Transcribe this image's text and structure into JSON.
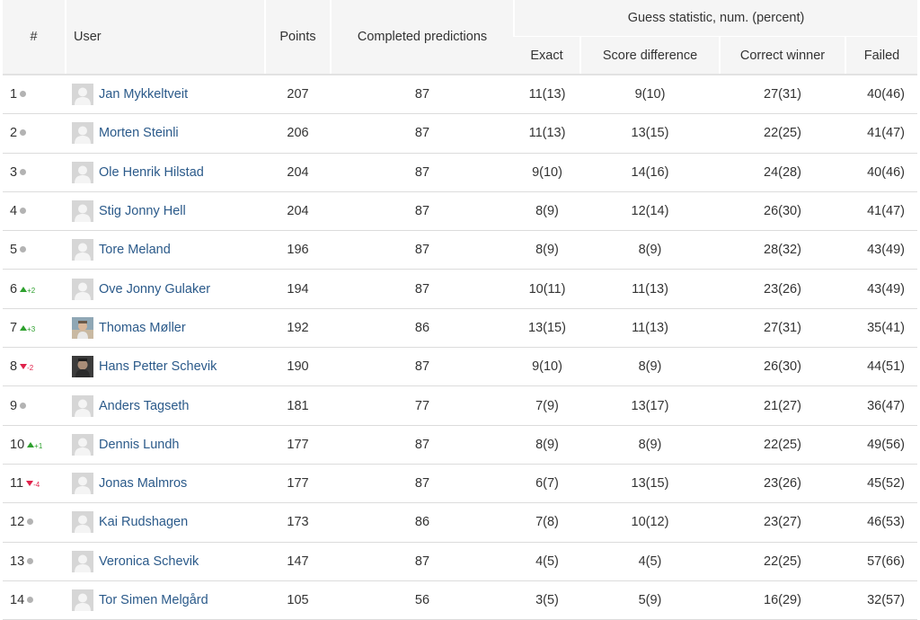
{
  "header": {
    "rank": "#",
    "user": "User",
    "points": "Points",
    "completed": "Completed predictions",
    "group": "Guess statistic, num. (percent)",
    "exact": "Exact",
    "score_diff": "Score difference",
    "correct_winner": "Correct winner",
    "failed": "Failed"
  },
  "colors": {
    "link": "#2b5a8a",
    "up": "#2ea02e",
    "down": "#e0224b",
    "neutral_dot": "#b3b3b3",
    "header_bg": "#f5f5f5"
  },
  "rows": [
    {
      "rank": "1",
      "trend": "same",
      "delta": "",
      "avatar": "default-avatar",
      "name": "Jan Mykkeltveit",
      "points": "207",
      "completed": "87",
      "exact": "11(13)",
      "score_diff": "9(10)",
      "correct_winner": "27(31)",
      "failed": "40(46)"
    },
    {
      "rank": "2",
      "trend": "same",
      "delta": "",
      "avatar": "default-avatar",
      "name": "Morten Steinli",
      "points": "206",
      "completed": "87",
      "exact": "11(13)",
      "score_diff": "13(15)",
      "correct_winner": "22(25)",
      "failed": "41(47)"
    },
    {
      "rank": "3",
      "trend": "same",
      "delta": "",
      "avatar": "default-avatar",
      "name": "Ole Henrik Hilstad",
      "points": "204",
      "completed": "87",
      "exact": "9(10)",
      "score_diff": "14(16)",
      "correct_winner": "24(28)",
      "failed": "40(46)"
    },
    {
      "rank": "4",
      "trend": "same",
      "delta": "",
      "avatar": "default-avatar",
      "name": "Stig Jonny Hell",
      "points": "204",
      "completed": "87",
      "exact": "8(9)",
      "score_diff": "12(14)",
      "correct_winner": "26(30)",
      "failed": "41(47)"
    },
    {
      "rank": "5",
      "trend": "same",
      "delta": "",
      "avatar": "default-avatar",
      "name": "Tore Meland",
      "points": "196",
      "completed": "87",
      "exact": "8(9)",
      "score_diff": "8(9)",
      "correct_winner": "28(32)",
      "failed": "43(49)"
    },
    {
      "rank": "6",
      "trend": "up",
      "delta": "+2",
      "avatar": "default-avatar",
      "name": "Ove Jonny Gulaker",
      "points": "194",
      "completed": "87",
      "exact": "10(11)",
      "score_diff": "11(13)",
      "correct_winner": "23(26)",
      "failed": "43(49)"
    },
    {
      "rank": "7",
      "trend": "up",
      "delta": "+3",
      "avatar": "photo-avatar",
      "name": "Thomas Møller",
      "points": "192",
      "completed": "86",
      "exact": "13(15)",
      "score_diff": "11(13)",
      "correct_winner": "27(31)",
      "failed": "35(41)"
    },
    {
      "rank": "8",
      "trend": "down",
      "delta": "-2",
      "avatar": "photo-avatar-dark",
      "name": "Hans Petter Schevik",
      "points": "190",
      "completed": "87",
      "exact": "9(10)",
      "score_diff": "8(9)",
      "correct_winner": "26(30)",
      "failed": "44(51)"
    },
    {
      "rank": "9",
      "trend": "same",
      "delta": "",
      "avatar": "default-avatar",
      "name": "Anders Tagseth",
      "points": "181",
      "completed": "77",
      "exact": "7(9)",
      "score_diff": "13(17)",
      "correct_winner": "21(27)",
      "failed": "36(47)"
    },
    {
      "rank": "10",
      "trend": "up",
      "delta": "+1",
      "avatar": "default-avatar",
      "name": "Dennis Lundh",
      "points": "177",
      "completed": "87",
      "exact": "8(9)",
      "score_diff": "8(9)",
      "correct_winner": "22(25)",
      "failed": "49(56)"
    },
    {
      "rank": "11",
      "trend": "down",
      "delta": "-4",
      "avatar": "default-avatar",
      "name": "Jonas Malmros",
      "points": "177",
      "completed": "87",
      "exact": "6(7)",
      "score_diff": "13(15)",
      "correct_winner": "23(26)",
      "failed": "45(52)"
    },
    {
      "rank": "12",
      "trend": "same",
      "delta": "",
      "avatar": "default-avatar",
      "name": "Kai Rudshagen",
      "points": "173",
      "completed": "86",
      "exact": "7(8)",
      "score_diff": "10(12)",
      "correct_winner": "23(27)",
      "failed": "46(53)"
    },
    {
      "rank": "13",
      "trend": "same",
      "delta": "",
      "avatar": "default-avatar",
      "name": "Veronica Schevik",
      "points": "147",
      "completed": "87",
      "exact": "4(5)",
      "score_diff": "4(5)",
      "correct_winner": "22(25)",
      "failed": "57(66)"
    },
    {
      "rank": "14",
      "trend": "same",
      "delta": "",
      "avatar": "default-avatar",
      "name": "Tor Simen Melgård",
      "points": "105",
      "completed": "56",
      "exact": "3(5)",
      "score_diff": "5(9)",
      "correct_winner": "16(29)",
      "failed": "32(57)"
    }
  ]
}
